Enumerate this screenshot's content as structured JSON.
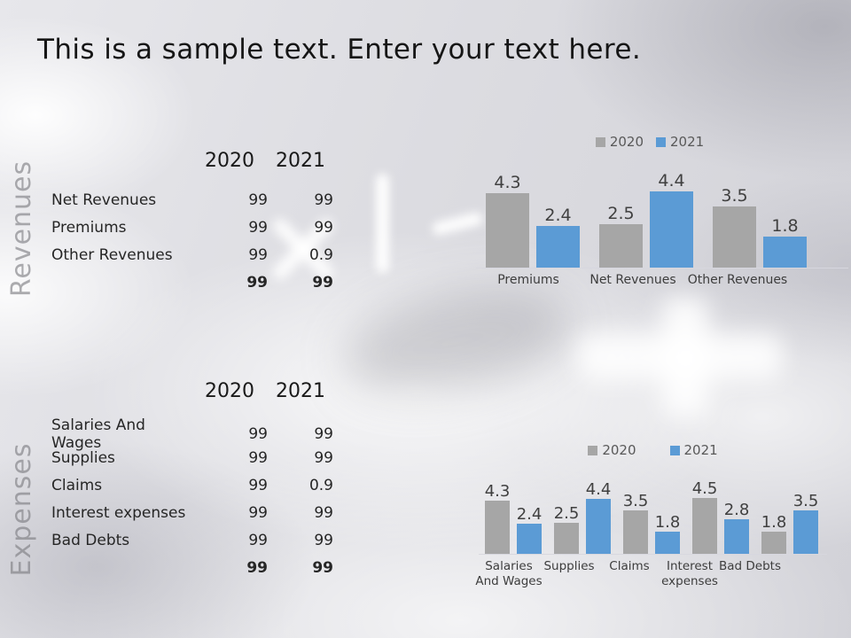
{
  "title": "This is a sample text. Enter your text here.",
  "colors": {
    "series_2020": "#a6a6a6",
    "series_2021": "#5b9bd5",
    "title_text": "#161616",
    "muted_side_label": "#7a7a80"
  },
  "revenues": {
    "section_label": "Revenues",
    "table": {
      "columns": [
        "2020",
        "2021"
      ],
      "rows": [
        {
          "label": "Net Revenues",
          "y2020": "99",
          "y2021": "99"
        },
        {
          "label": "Premiums",
          "y2020": "99",
          "y2021": "99"
        },
        {
          "label": "Other Revenues",
          "y2020": "99",
          "y2021": "0.9"
        }
      ],
      "total": {
        "y2020": "99",
        "y2021": "99"
      }
    }
  },
  "expenses": {
    "section_label": "Expenses",
    "table": {
      "columns": [
        "2020",
        "2021"
      ],
      "rows": [
        {
          "label": "Salaries And Wages",
          "y2020": "99",
          "y2021": "99"
        },
        {
          "label": "Supplies",
          "y2020": "99",
          "y2021": "99"
        },
        {
          "label": "Claims",
          "y2020": "99",
          "y2021": "0.9"
        },
        {
          "label": "Interest expenses",
          "y2020": "99",
          "y2021": "99"
        },
        {
          "label": "Bad Debts",
          "y2020": "99",
          "y2021": "99"
        }
      ],
      "total": {
        "y2020": "99",
        "y2021": "99"
      }
    }
  },
  "chart_data": [
    {
      "id": "revenues",
      "type": "bar",
      "title": "",
      "categories": [
        "Premiums",
        "Net Revenues",
        "Other Revenues"
      ],
      "series": [
        {
          "name": "2020",
          "color": "#a6a6a6",
          "values": [
            4.3,
            2.5,
            3.5
          ]
        },
        {
          "name": "2021",
          "color": "#5b9bd5",
          "values": [
            2.4,
            4.4,
            1.8
          ]
        }
      ],
      "legend_position": "top",
      "data_labels": true,
      "grid": false,
      "ylim": [
        0,
        4.4
      ]
    },
    {
      "id": "expenses",
      "type": "bar",
      "title": "",
      "categories": [
        "Salaries And Wages",
        "Supplies",
        "Claims",
        "Interest expenses",
        "Bad Debts"
      ],
      "series": [
        {
          "name": "2020",
          "color": "#a6a6a6",
          "values": [
            4.3,
            2.5,
            3.5,
            4.5,
            1.8
          ]
        },
        {
          "name": "2021",
          "color": "#5b9bd5",
          "values": [
            2.4,
            4.4,
            1.8,
            2.8,
            3.5
          ]
        }
      ],
      "legend_position": "top",
      "data_labels": true,
      "grid": false,
      "ylim": [
        0,
        4.5
      ]
    }
  ]
}
